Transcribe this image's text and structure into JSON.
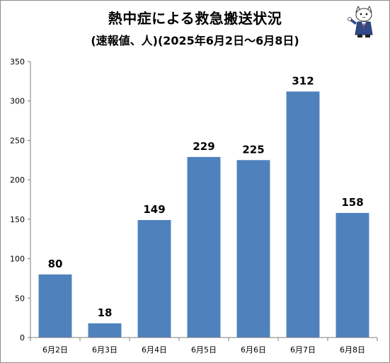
{
  "chart_data": {
    "type": "bar",
    "title": "熱中症による救急搬送状況",
    "subtitle": "(速報値、人)(2025年6月2日～6月8日)",
    "categories": [
      "6月2日",
      "6月3日",
      "6月4日",
      "6月5日",
      "6月6日",
      "6月7日",
      "6月8日"
    ],
    "values": [
      80,
      18,
      149,
      229,
      225,
      312,
      158
    ],
    "yticks": [
      "0",
      "50",
      "100",
      "150",
      "200",
      "250",
      "300",
      "350"
    ],
    "ylim": [
      0,
      350
    ],
    "xlabel": "",
    "ylabel": "",
    "grid": false,
    "bar_color": "#4f81bd"
  }
}
